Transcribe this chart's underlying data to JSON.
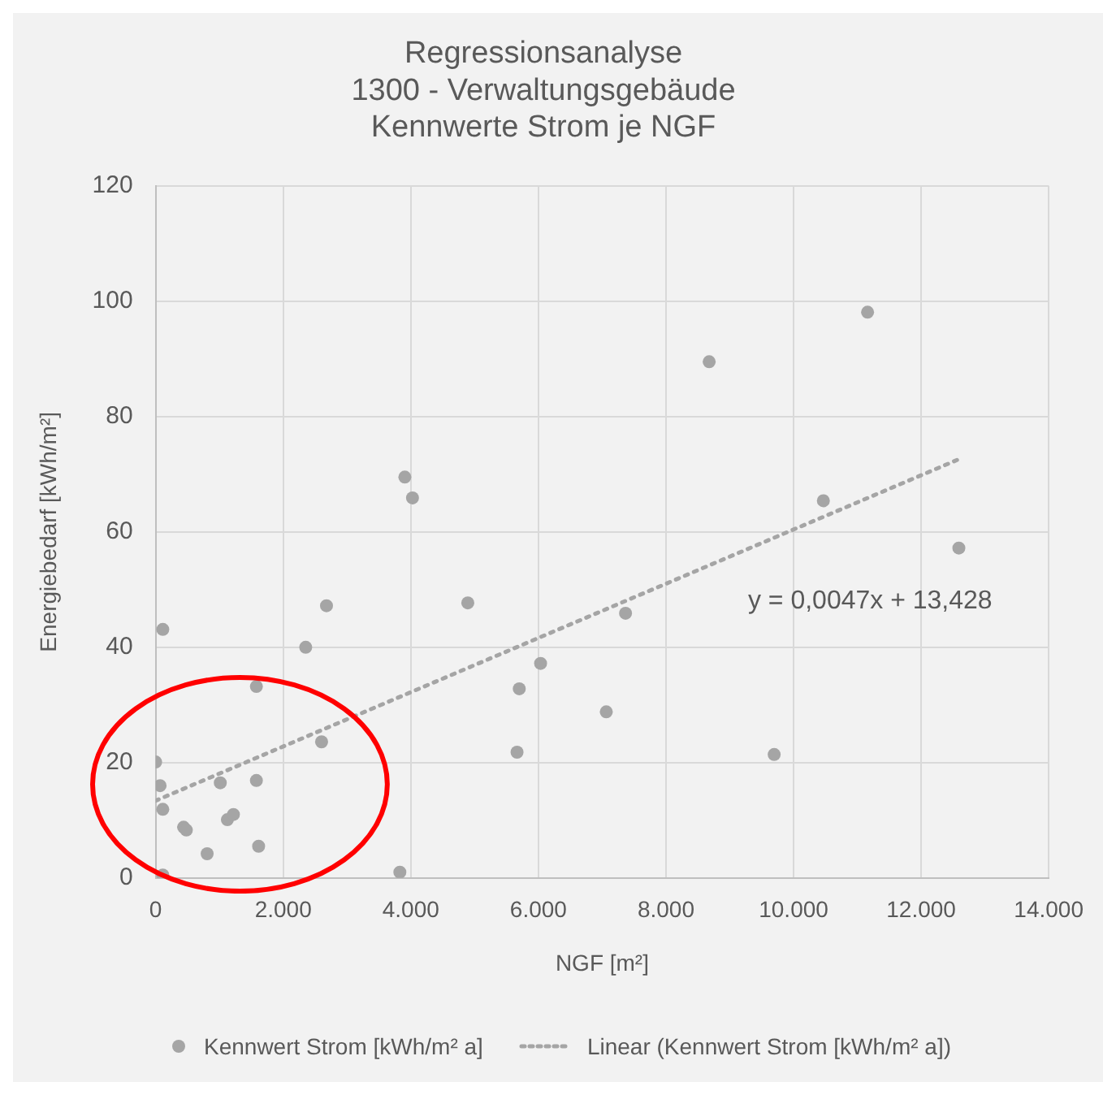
{
  "chart_data": {
    "type": "scatter",
    "title": "Regressionsanalyse\n1300 - Verwaltungsgebäude\nKennwerte Strom je NGF",
    "xlabel": "NGF [m²]",
    "ylabel": "Energiebedarf [kWh/m²]",
    "xlim": [
      0,
      14000
    ],
    "xticks": [
      0,
      {
        "value": 2000,
        "label": "2.000"
      },
      {
        "value": 4000,
        "label": "4.000"
      },
      {
        "value": 6000,
        "label": "6.000"
      },
      {
        "value": 8000,
        "label": "8.000"
      },
      {
        "value": 10000,
        "label": "10.000"
      },
      {
        "value": 12000,
        "label": "12.000"
      },
      {
        "value": 14000,
        "label": "14.000"
      }
    ],
    "ylim": [
      0,
      120
    ],
    "yticks": [
      0,
      20,
      40,
      60,
      80,
      100,
      120
    ],
    "grid": true,
    "legend": "bottom",
    "annotations": [
      "y = 0,0047x + 13,428"
    ],
    "series": [
      {
        "name": "Kennwert Strom [kWh/m² a]",
        "type": "scatter",
        "color": "#a5a5a5",
        "marker": "circle",
        "x": [
          112,
          0,
          69,
          112,
          112,
          438,
          481,
          807,
          1013,
          1124,
          1219,
          1579,
          1579,
          1614,
          2352,
          2601,
          2678,
          3828,
          3906,
          4026,
          4893,
          5665,
          5700,
          6034,
          7064,
          7366,
          8677,
          9696,
          10467,
          11160,
          12591
        ],
        "values": [
          43.1,
          20.1,
          16,
          11.9,
          0.5,
          8.8,
          8.3,
          4.2,
          16.5,
          10.1,
          11,
          33.2,
          16.9,
          5.5,
          40,
          23.6,
          47.2,
          1,
          69.5,
          65.9,
          47.7,
          21.8,
          32.8,
          37.2,
          28.8,
          45.9,
          89.5,
          21.4,
          65.4,
          98.1,
          57.2
        ]
      },
      {
        "name": "Linear (Kennwert Strom [kWh/m² a])",
        "type": "line",
        "color": "#a5a5a5",
        "marker": "none",
        "line_style": "dotted",
        "x": [
          0,
          12591
        ],
        "values": [
          13.4,
          72.6
        ]
      }
    ]
  }
}
